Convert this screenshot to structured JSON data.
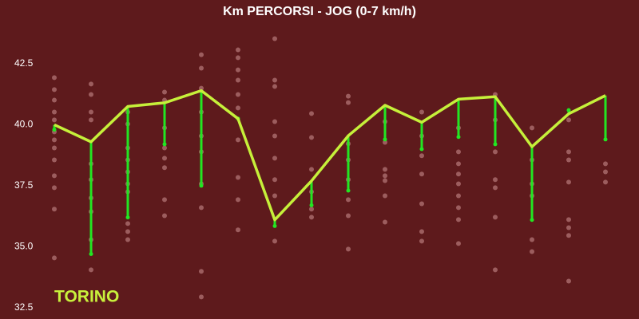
{
  "chart_data": {
    "type": "line",
    "title": "Km PERCORSI - JOG (0-7 km/h)",
    "annotation": "TORINO",
    "categories": [
      null,
      null,
      null,
      null,
      null,
      null,
      null,
      null,
      null,
      null,
      null,
      null,
      null,
      null,
      null,
      null
    ],
    "values": [
      40.0,
      39.3,
      40.75,
      40.9,
      41.4,
      40.25,
      36.1,
      37.7,
      39.55,
      40.8,
      40.1,
      41.05,
      41.15,
      39.1,
      40.45,
      41.2
    ],
    "range_ends": [
      39.8,
      34.7,
      36.2,
      39.2,
      37.5,
      40.25,
      35.85,
      36.7,
      37.3,
      39.4,
      39.0,
      39.5,
      39.2,
      36.1,
      40.6,
      39.4
    ],
    "points": [
      [
        41.93,
        41.44,
        41.01,
        40.52,
        40.2,
        39.71,
        39.38,
        39.05,
        38.56,
        37.91,
        37.42,
        36.54,
        34.54
      ],
      [
        41.67,
        41.24,
        40.52,
        40.2,
        38.4,
        37.75,
        37.0,
        36.44,
        35.29,
        34.05
      ],
      [
        40.52,
        40.03,
        39.05,
        38.56,
        38.07,
        37.58,
        37.25,
        35.95,
        35.62,
        35.29
      ],
      [
        41.34,
        41.01,
        39.87,
        39.05,
        38.63,
        38.24,
        36.93,
        36.27
      ],
      [
        42.87,
        42.32,
        41.5,
        40.52,
        39.54,
        38.89,
        37.58,
        36.6,
        33.99,
        32.94
      ],
      [
        43.07,
        42.75,
        42.25,
        41.83,
        41.24,
        40.69,
        39.38,
        37.84,
        36.93,
        35.69
      ],
      [
        43.53,
        41.83,
        41.57,
        40.13,
        39.54,
        38.63,
        37.75,
        37.09,
        35.23
      ],
      [
        40.46,
        39.48,
        38.17,
        37.25,
        36.54,
        36.21
      ],
      [
        41.17,
        40.91,
        39.22,
        38.56,
        37.75,
        36.93,
        36.27,
        34.9
      ],
      [
        40.13,
        39.28,
        38.17,
        37.91,
        37.71,
        37.09,
        36.01
      ],
      [
        40.52,
        39.54,
        38.73,
        37.98,
        36.76,
        35.62,
        35.23
      ],
      [
        39.87,
        38.89,
        38.4,
        37.98,
        37.58,
        37.09,
        36.6,
        36.11,
        35.13
      ],
      [
        41.24,
        40.2,
        38.89,
        37.75,
        37.42,
        36.21,
        34.05
      ],
      [
        39.87,
        38.56,
        37.58,
        37.09,
        35.29,
        34.8
      ],
      [
        40.2,
        38.89,
        38.56,
        37.65,
        36.11,
        35.78,
        35.46,
        33.59
      ],
      [
        38.4,
        38.07,
        37.65
      ]
    ],
    "line_color": "#c6f03a",
    "range_color": "#22e622",
    "point_color": "#e8b0b0",
    "ylim": [
      32.2,
      44.2
    ],
    "yticks": [
      32.5,
      {
        "value": 35,
        "label": "35.0"
      },
      37.5,
      {
        "value": 40,
        "label": "40.0"
      },
      42.5
    ],
    "grid": false
  }
}
